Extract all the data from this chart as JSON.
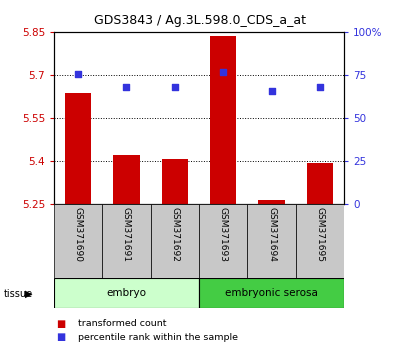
{
  "title": "GDS3843 / Ag.3L.598.0_CDS_a_at",
  "samples": [
    "GSM371690",
    "GSM371691",
    "GSM371692",
    "GSM371693",
    "GSM371694",
    "GSM371695"
  ],
  "transformed_count": [
    5.635,
    5.42,
    5.405,
    5.835,
    5.262,
    5.39
  ],
  "percentile_rank": [
    75.5,
    68.0,
    68.0,
    76.5,
    65.5,
    68.0
  ],
  "ylim_left": [
    5.25,
    5.85
  ],
  "ylim_right": [
    0,
    100
  ],
  "yticks_left": [
    5.25,
    5.4,
    5.55,
    5.7,
    5.85
  ],
  "yticks_right": [
    0,
    25,
    50,
    75,
    100
  ],
  "ytick_labels_right": [
    "0",
    "25",
    "50",
    "75",
    "100%"
  ],
  "bar_color": "#cc0000",
  "dot_color": "#3333dd",
  "base_value": 5.25,
  "tissue_groups": [
    {
      "label": "embryo",
      "indices": [
        0,
        1,
        2
      ],
      "color": "#ccffcc"
    },
    {
      "label": "embryonic serosa",
      "indices": [
        3,
        4,
        5
      ],
      "color": "#44cc44"
    }
  ],
  "legend_bar_label": "transformed count",
  "legend_dot_label": "percentile rank within the sample",
  "left_axis_color": "#cc0000",
  "right_axis_color": "#3333dd",
  "sample_label_bg": "#c8c8c8",
  "plot_bg": "#ffffff"
}
